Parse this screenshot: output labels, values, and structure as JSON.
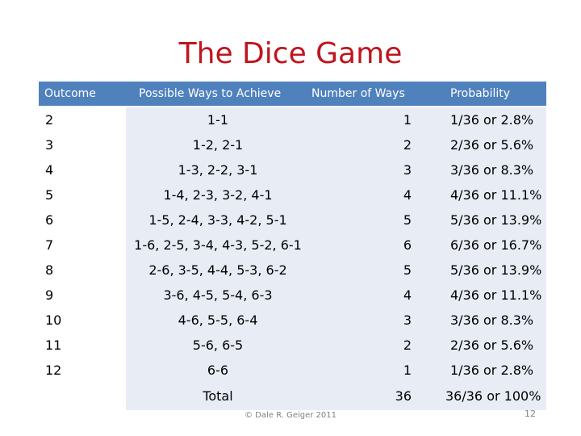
{
  "title": "The Dice Game",
  "headers": {
    "outcome": "Outcome",
    "ways": "Possible Ways to Achieve",
    "count": "Number of Ways",
    "probability": "Probability"
  },
  "rows": [
    {
      "outcome": "2",
      "ways": "1-1",
      "count": "1",
      "probability": "1/36  or  2.8%"
    },
    {
      "outcome": "3",
      "ways": "1-2, 2-1",
      "count": "2",
      "probability": "2/36  or  5.6%"
    },
    {
      "outcome": "4",
      "ways": "1-3, 2-2, 3-1",
      "count": "3",
      "probability": "3/36  or  8.3%"
    },
    {
      "outcome": "5",
      "ways": "1-4, 2-3, 3-2, 4-1",
      "count": "4",
      "probability": "4/36 or 11.1%"
    },
    {
      "outcome": "6",
      "ways": "1-5, 2-4, 3-3, 4-2, 5-1",
      "count": "5",
      "probability": "5/36 or 13.9%"
    },
    {
      "outcome": "7",
      "ways": "1-6, 2-5, 3-4, 4-3, 5-2, 6-1",
      "count": "6",
      "probability": "6/36 or 16.7%"
    },
    {
      "outcome": "8",
      "ways": "2-6, 3-5, 4-4, 5-3, 6-2",
      "count": "5",
      "probability": "5/36 or 13.9%"
    },
    {
      "outcome": "9",
      "ways": "3-6, 4-5, 5-4, 6-3",
      "count": "4",
      "probability": "4/36 or 11.1%"
    },
    {
      "outcome": "10",
      "ways": "4-6, 5-5, 6-4",
      "count": "3",
      "probability": "3/36  or  8.3%"
    },
    {
      "outcome": "11",
      "ways": "5-6, 6-5",
      "count": "2",
      "probability": "2/36  or  5.6%"
    },
    {
      "outcome": "12",
      "ways": "6-6",
      "count": "1",
      "probability": "1/36  or  2.8%"
    }
  ],
  "total": {
    "label": "Total",
    "count": "36",
    "probability": "36/36 or 100%"
  },
  "footer": "© Dale R. Geiger 2011",
  "page_number": "12"
}
